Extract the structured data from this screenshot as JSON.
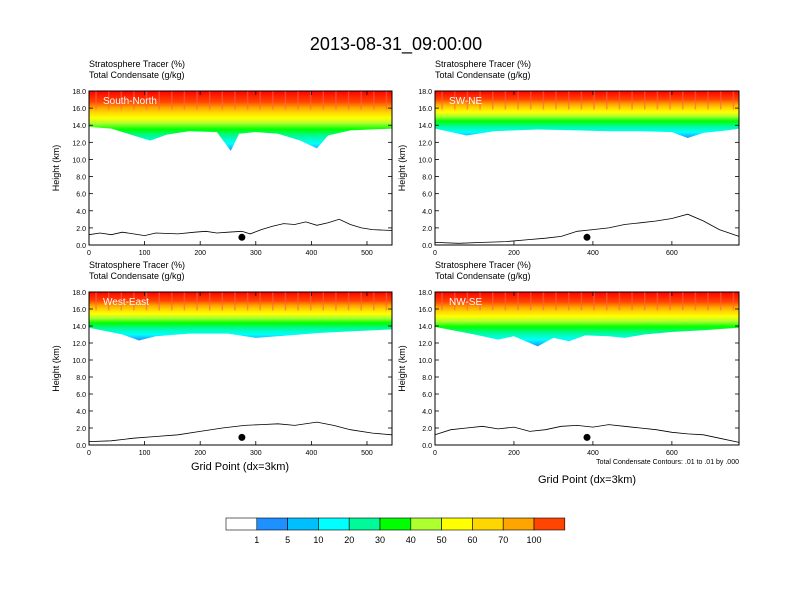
{
  "title": "2013-08-31_09:00:00",
  "chart_data": {
    "type": "heatmap",
    "variable_label": "Stratosphere Tracer",
    "variable_units": "(%)",
    "contour_label": "Total Condensate",
    "contour_units": "(g/kg)",
    "ylabel": "Height (km)",
    "xlabel": "Grid Point (dx=3km)",
    "ylim": [
      0,
      18
    ],
    "yticks": [
      "0.0",
      "2.0",
      "4.0",
      "6.0",
      "8.0",
      "10.0",
      "12.0",
      "14.0",
      "16.0",
      "18.0"
    ],
    "contour_note": "Total Condensate Contours: .01 to .01 by .000",
    "colorbar": {
      "levels": [
        "1",
        "5",
        "10",
        "20",
        "30",
        "40",
        "50",
        "60",
        "70",
        "100"
      ],
      "colors": [
        "#ffffff",
        "#1e90ff",
        "#00bfff",
        "#00ffff",
        "#00fa9a",
        "#00ff00",
        "#adff2f",
        "#ffff00",
        "#ffd700",
        "#ffa500",
        "#ff4500",
        "#ff0000"
      ]
    },
    "panels": [
      {
        "name": "South-North",
        "xlim": [
          0,
          545
        ],
        "xticks": [
          0,
          100,
          200,
          300,
          400,
          500
        ],
        "terrain_peak_x": 275,
        "terrain": [
          [
            0,
            1.2
          ],
          [
            20,
            1.4
          ],
          [
            40,
            1.2
          ],
          [
            60,
            1.5
          ],
          [
            80,
            1.3
          ],
          [
            100,
            1.1
          ],
          [
            120,
            1.4
          ],
          [
            160,
            1.3
          ],
          [
            190,
            1.5
          ],
          [
            210,
            1.6
          ],
          [
            230,
            1.4
          ],
          [
            250,
            1.5
          ],
          [
            275,
            1.6
          ],
          [
            290,
            1.3
          ],
          [
            310,
            1.8
          ],
          [
            330,
            2.2
          ],
          [
            350,
            2.5
          ],
          [
            370,
            2.4
          ],
          [
            390,
            2.7
          ],
          [
            410,
            2.3
          ],
          [
            430,
            2.6
          ],
          [
            450,
            3.0
          ],
          [
            470,
            2.4
          ],
          [
            490,
            2.0
          ],
          [
            510,
            1.8
          ],
          [
            545,
            1.7
          ]
        ],
        "cloud_base": [
          [
            0,
            13.8
          ],
          [
            40,
            13.6
          ],
          [
            80,
            12.8
          ],
          [
            110,
            12.2
          ],
          [
            140,
            12.9
          ],
          [
            180,
            13.3
          ],
          [
            230,
            13.2
          ],
          [
            255,
            11.0
          ],
          [
            270,
            13.0
          ],
          [
            300,
            13.2
          ],
          [
            340,
            13.0
          ],
          [
            380,
            12.2
          ],
          [
            410,
            11.3
          ],
          [
            430,
            12.8
          ],
          [
            470,
            13.4
          ],
          [
            545,
            13.6
          ]
        ]
      },
      {
        "name": "SW-NE",
        "xlim": [
          0,
          770
        ],
        "xticks": [
          0,
          200,
          400,
          600
        ],
        "terrain_peak_x": 385,
        "terrain": [
          [
            0,
            0.3
          ],
          [
            60,
            0.2
          ],
          [
            120,
            0.3
          ],
          [
            180,
            0.4
          ],
          [
            230,
            0.6
          ],
          [
            280,
            0.8
          ],
          [
            320,
            1.0
          ],
          [
            360,
            1.6
          ],
          [
            400,
            1.8
          ],
          [
            440,
            2.0
          ],
          [
            480,
            2.4
          ],
          [
            520,
            2.6
          ],
          [
            560,
            2.8
          ],
          [
            600,
            3.1
          ],
          [
            640,
            3.6
          ],
          [
            680,
            2.8
          ],
          [
            720,
            1.8
          ],
          [
            770,
            1.0
          ]
        ],
        "cloud_base": [
          [
            0,
            13.6
          ],
          [
            80,
            12.8
          ],
          [
            150,
            13.3
          ],
          [
            260,
            13.5
          ],
          [
            360,
            13.4
          ],
          [
            440,
            13.3
          ],
          [
            520,
            13.3
          ],
          [
            600,
            13.2
          ],
          [
            640,
            12.5
          ],
          [
            680,
            13.1
          ],
          [
            740,
            13.4
          ],
          [
            770,
            13.6
          ]
        ]
      },
      {
        "name": "West-East",
        "xlim": [
          0,
          545
        ],
        "xticks": [
          0,
          100,
          200,
          300,
          400,
          500
        ],
        "terrain_peak_x": 275,
        "terrain": [
          [
            0,
            0.4
          ],
          [
            40,
            0.5
          ],
          [
            80,
            0.8
          ],
          [
            120,
            1.0
          ],
          [
            160,
            1.2
          ],
          [
            200,
            1.6
          ],
          [
            240,
            2.0
          ],
          [
            280,
            2.3
          ],
          [
            310,
            2.4
          ],
          [
            340,
            2.5
          ],
          [
            370,
            2.3
          ],
          [
            410,
            2.7
          ],
          [
            440,
            2.3
          ],
          [
            470,
            1.8
          ],
          [
            510,
            1.4
          ],
          [
            545,
            1.2
          ]
        ],
        "cloud_base": [
          [
            0,
            13.8
          ],
          [
            60,
            13.0
          ],
          [
            90,
            12.3
          ],
          [
            120,
            12.8
          ],
          [
            180,
            13.1
          ],
          [
            250,
            13.1
          ],
          [
            300,
            12.6
          ],
          [
            360,
            12.9
          ],
          [
            420,
            13.2
          ],
          [
            480,
            13.4
          ],
          [
            545,
            13.6
          ]
        ]
      },
      {
        "name": "NW-SE",
        "xlim": [
          0,
          770
        ],
        "xticks": [
          0,
          200,
          400,
          600
        ],
        "terrain_peak_x": 385,
        "terrain": [
          [
            0,
            1.2
          ],
          [
            40,
            1.8
          ],
          [
            80,
            2.0
          ],
          [
            120,
            2.2
          ],
          [
            160,
            1.9
          ],
          [
            200,
            2.1
          ],
          [
            240,
            1.6
          ],
          [
            280,
            1.8
          ],
          [
            320,
            2.2
          ],
          [
            360,
            2.3
          ],
          [
            400,
            2.1
          ],
          [
            440,
            2.4
          ],
          [
            480,
            2.2
          ],
          [
            520,
            2.0
          ],
          [
            560,
            1.8
          ],
          [
            600,
            1.5
          ],
          [
            640,
            1.3
          ],
          [
            680,
            1.2
          ],
          [
            720,
            0.8
          ],
          [
            770,
            0.3
          ]
        ],
        "cloud_base": [
          [
            0,
            13.9
          ],
          [
            100,
            13.0
          ],
          [
            160,
            12.4
          ],
          [
            200,
            12.8
          ],
          [
            260,
            11.6
          ],
          [
            300,
            12.6
          ],
          [
            340,
            12.2
          ],
          [
            380,
            12.9
          ],
          [
            440,
            12.8
          ],
          [
            480,
            12.6
          ],
          [
            530,
            13.0
          ],
          [
            600,
            13.3
          ],
          [
            680,
            13.5
          ],
          [
            770,
            13.8
          ]
        ]
      }
    ]
  }
}
